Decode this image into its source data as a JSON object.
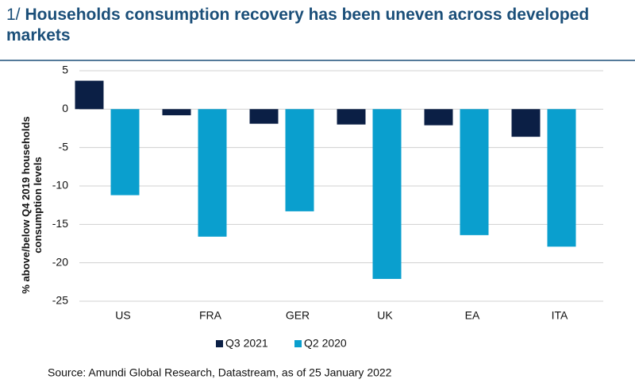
{
  "chart_data": {
    "type": "bar",
    "title_prefix": "1/",
    "title": "Households consumption recovery has been uneven across developed markets",
    "ylabel": "% above/below Q4 2019 households consumption levels",
    "source": "Source: Amundi Global Research, Datastream, as of 25 January 2022",
    "categories": [
      "US",
      "FRA",
      "GER",
      "UK",
      "EA",
      "ITA"
    ],
    "series": [
      {
        "name": "Q3 2021",
        "color": "#0b1f45",
        "values": [
          3.7,
          -0.8,
          -1.9,
          -2.0,
          -2.1,
          -3.6
        ]
      },
      {
        "name": "Q2 2020",
        "color": "#0a9fce",
        "values": [
          -11.2,
          -16.6,
          -13.3,
          -22.1,
          -16.4,
          -17.9
        ]
      }
    ],
    "ylim": [
      5,
      -25
    ],
    "yticks": [
      5,
      0,
      -5,
      -10,
      -15,
      -20,
      -25
    ],
    "grid": true
  }
}
